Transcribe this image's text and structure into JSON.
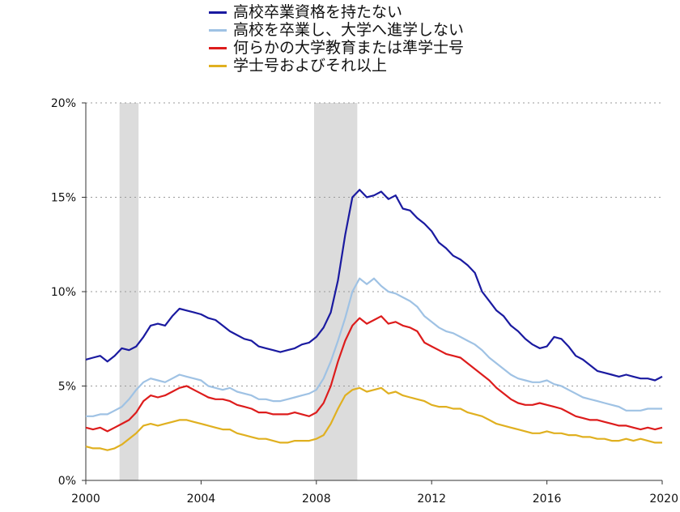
{
  "chart_data": {
    "type": "line",
    "title": "",
    "xlabel": "",
    "ylabel": "",
    "xlim": [
      2000,
      2020
    ],
    "ylim": [
      0,
      20
    ],
    "x_ticks": [
      2000,
      2004,
      2008,
      2012,
      2016,
      2020
    ],
    "x_tick_labels": [
      "2000",
      "2004",
      "2008",
      "2012",
      "2016",
      "2020"
    ],
    "y_ticks": [
      0,
      5,
      10,
      15,
      20
    ],
    "y_tick_labels": [
      "0%",
      "5%",
      "10%",
      "15%",
      "20%"
    ],
    "grid": "horizontal-dotted",
    "legend_position": "top-center",
    "recession_bands": [
      [
        2001.17,
        2001.83
      ],
      [
        2007.92,
        2009.42
      ]
    ],
    "recession_color": "#dcdcdc",
    "series": [
      {
        "name": "高校卒業資格を持たない",
        "color": "#1a1aa0",
        "x": [
          2000.0,
          2000.25,
          2000.5,
          2000.75,
          2001.0,
          2001.25,
          2001.5,
          2001.75,
          2002.0,
          2002.25,
          2002.5,
          2002.75,
          2003.0,
          2003.25,
          2003.5,
          2003.75,
          2004.0,
          2004.25,
          2004.5,
          2004.75,
          2005.0,
          2005.25,
          2005.5,
          2005.75,
          2006.0,
          2006.25,
          2006.5,
          2006.75,
          2007.0,
          2007.25,
          2007.5,
          2007.75,
          2008.0,
          2008.25,
          2008.5,
          2008.75,
          2009.0,
          2009.25,
          2009.5,
          2009.75,
          2010.0,
          2010.25,
          2010.5,
          2010.75,
          2011.0,
          2011.25,
          2011.5,
          2011.75,
          2012.0,
          2012.25,
          2012.5,
          2012.75,
          2013.0,
          2013.25,
          2013.5,
          2013.75,
          2014.0,
          2014.25,
          2014.5,
          2014.75,
          2015.0,
          2015.25,
          2015.5,
          2015.75,
          2016.0,
          2016.25,
          2016.5,
          2016.75,
          2017.0,
          2017.25,
          2017.5,
          2017.75,
          2018.0,
          2018.25,
          2018.5,
          2018.75,
          2019.0,
          2019.25,
          2019.5,
          2019.75,
          2020.0
        ],
        "y": [
          6.4,
          6.5,
          6.6,
          6.3,
          6.6,
          7.0,
          6.9,
          7.1,
          7.6,
          8.2,
          8.3,
          8.2,
          8.7,
          9.1,
          9.0,
          8.9,
          8.8,
          8.6,
          8.5,
          8.2,
          7.9,
          7.7,
          7.5,
          7.4,
          7.1,
          7.0,
          6.9,
          6.8,
          6.9,
          7.0,
          7.2,
          7.3,
          7.6,
          8.1,
          8.9,
          10.6,
          13.0,
          15.0,
          15.4,
          15.0,
          15.1,
          15.3,
          14.9,
          15.1,
          14.4,
          14.3,
          13.9,
          13.6,
          13.2,
          12.6,
          12.3,
          11.9,
          11.7,
          11.4,
          11.0,
          10.0,
          9.5,
          9.0,
          8.7,
          8.2,
          7.9,
          7.5,
          7.2,
          7.0,
          7.1,
          7.6,
          7.5,
          7.1,
          6.6,
          6.4,
          6.1,
          5.8,
          5.7,
          5.6,
          5.5,
          5.6,
          5.5,
          5.4,
          5.4,
          5.3,
          5.5
        ]
      },
      {
        "name": "高校を卒業し、大学へ進学しない",
        "color": "#9fc2e4",
        "x": [
          2000.0,
          2000.25,
          2000.5,
          2000.75,
          2001.0,
          2001.25,
          2001.5,
          2001.75,
          2002.0,
          2002.25,
          2002.5,
          2002.75,
          2003.0,
          2003.25,
          2003.5,
          2003.75,
          2004.0,
          2004.25,
          2004.5,
          2004.75,
          2005.0,
          2005.25,
          2005.5,
          2005.75,
          2006.0,
          2006.25,
          2006.5,
          2006.75,
          2007.0,
          2007.25,
          2007.5,
          2007.75,
          2008.0,
          2008.25,
          2008.5,
          2008.75,
          2009.0,
          2009.25,
          2009.5,
          2009.75,
          2010.0,
          2010.25,
          2010.5,
          2010.75,
          2011.0,
          2011.25,
          2011.5,
          2011.75,
          2012.0,
          2012.25,
          2012.5,
          2012.75,
          2013.0,
          2013.25,
          2013.5,
          2013.75,
          2014.0,
          2014.25,
          2014.5,
          2014.75,
          2015.0,
          2015.25,
          2015.5,
          2015.75,
          2016.0,
          2016.25,
          2016.5,
          2016.75,
          2017.0,
          2017.25,
          2017.5,
          2017.75,
          2018.0,
          2018.25,
          2018.5,
          2018.75,
          2019.0,
          2019.25,
          2019.5,
          2019.75,
          2020.0
        ],
        "y": [
          3.4,
          3.4,
          3.5,
          3.5,
          3.7,
          3.9,
          4.3,
          4.8,
          5.2,
          5.4,
          5.3,
          5.2,
          5.4,
          5.6,
          5.5,
          5.4,
          5.3,
          5.0,
          4.9,
          4.8,
          4.9,
          4.7,
          4.6,
          4.5,
          4.3,
          4.3,
          4.2,
          4.2,
          4.3,
          4.4,
          4.5,
          4.6,
          4.8,
          5.4,
          6.3,
          7.4,
          8.6,
          10.0,
          10.7,
          10.4,
          10.7,
          10.3,
          10.0,
          9.9,
          9.7,
          9.5,
          9.2,
          8.7,
          8.4,
          8.1,
          7.9,
          7.8,
          7.6,
          7.4,
          7.2,
          6.9,
          6.5,
          6.2,
          5.9,
          5.6,
          5.4,
          5.3,
          5.2,
          5.2,
          5.3,
          5.1,
          5.0,
          4.8,
          4.6,
          4.4,
          4.3,
          4.2,
          4.1,
          4.0,
          3.9,
          3.7,
          3.7,
          3.7,
          3.8,
          3.8,
          3.8
        ]
      },
      {
        "name": "何らかの大学教育または準学士号",
        "color": "#dd1c1c",
        "x": [
          2000.0,
          2000.25,
          2000.5,
          2000.75,
          2001.0,
          2001.25,
          2001.5,
          2001.75,
          2002.0,
          2002.25,
          2002.5,
          2002.75,
          2003.0,
          2003.25,
          2003.5,
          2003.75,
          2004.0,
          2004.25,
          2004.5,
          2004.75,
          2005.0,
          2005.25,
          2005.5,
          2005.75,
          2006.0,
          2006.25,
          2006.5,
          2006.75,
          2007.0,
          2007.25,
          2007.5,
          2007.75,
          2008.0,
          2008.25,
          2008.5,
          2008.75,
          2009.0,
          2009.25,
          2009.5,
          2009.75,
          2010.0,
          2010.25,
          2010.5,
          2010.75,
          2011.0,
          2011.25,
          2011.5,
          2011.75,
          2012.0,
          2012.25,
          2012.5,
          2012.75,
          2013.0,
          2013.25,
          2013.5,
          2013.75,
          2014.0,
          2014.25,
          2014.5,
          2014.75,
          2015.0,
          2015.25,
          2015.5,
          2015.75,
          2016.0,
          2016.25,
          2016.5,
          2016.75,
          2017.0,
          2017.25,
          2017.5,
          2017.75,
          2018.0,
          2018.25,
          2018.5,
          2018.75,
          2019.0,
          2019.25,
          2019.5,
          2019.75,
          2020.0
        ],
        "y": [
          2.8,
          2.7,
          2.8,
          2.6,
          2.8,
          3.0,
          3.2,
          3.6,
          4.2,
          4.5,
          4.4,
          4.5,
          4.7,
          4.9,
          5.0,
          4.8,
          4.6,
          4.4,
          4.3,
          4.3,
          4.2,
          4.0,
          3.9,
          3.8,
          3.6,
          3.6,
          3.5,
          3.5,
          3.5,
          3.6,
          3.5,
          3.4,
          3.6,
          4.1,
          5.0,
          6.3,
          7.4,
          8.2,
          8.6,
          8.3,
          8.5,
          8.7,
          8.3,
          8.4,
          8.2,
          8.1,
          7.9,
          7.3,
          7.1,
          6.9,
          6.7,
          6.6,
          6.5,
          6.2,
          5.9,
          5.6,
          5.3,
          4.9,
          4.6,
          4.3,
          4.1,
          4.0,
          4.0,
          4.1,
          4.0,
          3.9,
          3.8,
          3.6,
          3.4,
          3.3,
          3.2,
          3.2,
          3.1,
          3.0,
          2.9,
          2.9,
          2.8,
          2.7,
          2.8,
          2.7,
          2.8
        ]
      },
      {
        "name": "学士号およびそれ以上",
        "color": "#e0b020",
        "x": [
          2000.0,
          2000.25,
          2000.5,
          2000.75,
          2001.0,
          2001.25,
          2001.5,
          2001.75,
          2002.0,
          2002.25,
          2002.5,
          2002.75,
          2003.0,
          2003.25,
          2003.5,
          2003.75,
          2004.0,
          2004.25,
          2004.5,
          2004.75,
          2005.0,
          2005.25,
          2005.5,
          2005.75,
          2006.0,
          2006.25,
          2006.5,
          2006.75,
          2007.0,
          2007.25,
          2007.5,
          2007.75,
          2008.0,
          2008.25,
          2008.5,
          2008.75,
          2009.0,
          2009.25,
          2009.5,
          2009.75,
          2010.0,
          2010.25,
          2010.5,
          2010.75,
          2011.0,
          2011.25,
          2011.5,
          2011.75,
          2012.0,
          2012.25,
          2012.5,
          2012.75,
          2013.0,
          2013.25,
          2013.5,
          2013.75,
          2014.0,
          2014.25,
          2014.5,
          2014.75,
          2015.0,
          2015.25,
          2015.5,
          2015.75,
          2016.0,
          2016.25,
          2016.5,
          2016.75,
          2017.0,
          2017.25,
          2017.5,
          2017.75,
          2018.0,
          2018.25,
          2018.5,
          2018.75,
          2019.0,
          2019.25,
          2019.5,
          2019.75,
          2020.0
        ],
        "y": [
          1.8,
          1.7,
          1.7,
          1.6,
          1.7,
          1.9,
          2.2,
          2.5,
          2.9,
          3.0,
          2.9,
          3.0,
          3.1,
          3.2,
          3.2,
          3.1,
          3.0,
          2.9,
          2.8,
          2.7,
          2.7,
          2.5,
          2.4,
          2.3,
          2.2,
          2.2,
          2.1,
          2.0,
          2.0,
          2.1,
          2.1,
          2.1,
          2.2,
          2.4,
          3.0,
          3.8,
          4.5,
          4.8,
          4.9,
          4.7,
          4.8,
          4.9,
          4.6,
          4.7,
          4.5,
          4.4,
          4.3,
          4.2,
          4.0,
          3.9,
          3.9,
          3.8,
          3.8,
          3.6,
          3.5,
          3.4,
          3.2,
          3.0,
          2.9,
          2.8,
          2.7,
          2.6,
          2.5,
          2.5,
          2.6,
          2.5,
          2.5,
          2.4,
          2.4,
          2.3,
          2.3,
          2.2,
          2.2,
          2.1,
          2.1,
          2.2,
          2.1,
          2.2,
          2.1,
          2.0,
          2.0
        ]
      }
    ]
  }
}
